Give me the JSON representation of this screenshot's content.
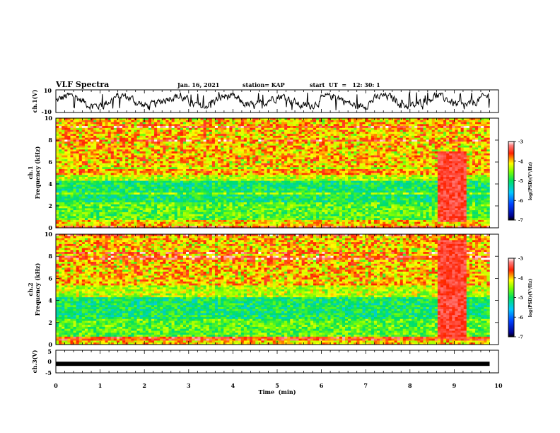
{
  "header": {
    "title": "VLF Spectra",
    "date": "Jan. 16, 2021",
    "station": "station= KAP",
    "start": "start  UT  =   12: 30: 1"
  },
  "chart_data": [
    {
      "type": "line",
      "name": "ch1-waveform",
      "ylabel": "ch.1(V)",
      "ylim": [
        -10,
        10
      ],
      "y_ticks": [
        "10",
        "-10"
      ],
      "x_range_min": [
        0,
        9.8
      ],
      "description_values": "noisy waveform roughly between -6 and 6 V"
    },
    {
      "type": "heatmap",
      "name": "ch1-spectrogram",
      "ylabel": "ch.1\nFrequency (kHz)",
      "ylabel_lines": [
        "ch.1",
        "Frequency (kHz)"
      ],
      "ylim": [
        0,
        10
      ],
      "y_ticks": [
        "0",
        "2",
        "4",
        "6",
        "8",
        "10"
      ],
      "x_range_min": [
        0,
        9.8
      ],
      "colorbar": {
        "label": "log(PSD)(V²/Hz)",
        "range": [
          -7,
          -3
        ],
        "ticks": [
          "-3",
          "-4",
          "-5",
          "-6",
          "-7"
        ]
      }
    },
    {
      "type": "heatmap",
      "name": "ch2-spectrogram",
      "ylabel_lines": [
        "ch.2",
        "Frequency (kHz)"
      ],
      "ylim": [
        0,
        10
      ],
      "y_ticks": [
        "0",
        "2",
        "4",
        "6",
        "8",
        "10"
      ],
      "x_range_min": [
        0,
        9.8
      ],
      "colorbar": {
        "label": "log(PSD)(V²/Hz)",
        "range": [
          -7,
          -3
        ],
        "ticks": [
          "-3",
          "-4",
          "-5",
          "-6",
          "-7"
        ]
      }
    },
    {
      "type": "line",
      "name": "ch3-waveform",
      "ylabel": "ch.3(V)",
      "ylim": [
        -5,
        5
      ],
      "y_ticks": [
        "5",
        "0",
        "-5"
      ],
      "values_constant": -1.0,
      "x_range_min": [
        0,
        9.8
      ]
    }
  ],
  "x_axis": {
    "label": "Time  (min)",
    "range": [
      0,
      10
    ],
    "ticks": [
      "0",
      "1",
      "2",
      "3",
      "4",
      "5",
      "6",
      "7",
      "8",
      "9",
      "10"
    ]
  }
}
